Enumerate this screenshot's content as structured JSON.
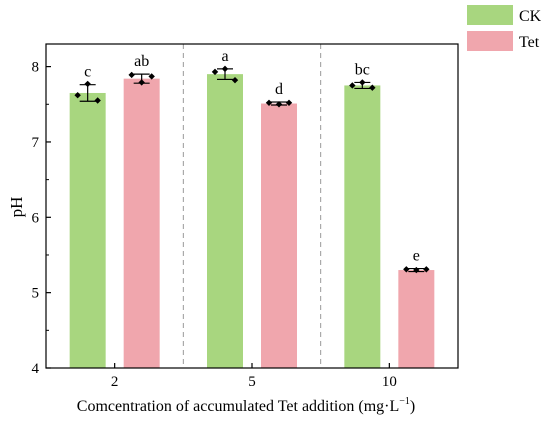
{
  "chart_data": {
    "type": "bar",
    "xlabel": "Comcentration of accumulated Tet addition (mg·L",
    "xlabel_superscript": "−1",
    "xlabel_close": ")",
    "ylabel": "pH",
    "categories": [
      "2",
      "5",
      "10"
    ],
    "ylim": [
      4,
      8.3
    ],
    "yticks": [
      4,
      5,
      6,
      7,
      8
    ],
    "grid": false,
    "group_separators": "dashed vertical lines between groups",
    "legend_position": "top-right, outside plot",
    "series": [
      {
        "name": "CK",
        "color": "#a8d67f",
        "values": [
          7.65,
          7.9,
          7.75
        ],
        "errors": [
          0.11,
          0.07,
          0.04
        ],
        "letters": [
          "c",
          "a",
          "bc"
        ],
        "replicates": [
          [
            7.62,
            7.77,
            7.55
          ],
          [
            7.93,
            7.97,
            7.82
          ],
          [
            7.75,
            7.79,
            7.72
          ]
        ]
      },
      {
        "name": "Tet",
        "color": "#f0a6ad",
        "values": [
          7.84,
          7.51,
          5.3
        ],
        "errors": [
          0.06,
          0.02,
          0.02
        ],
        "letters": [
          "ab",
          "d",
          "e"
        ],
        "replicates": [
          [
            7.89,
            7.79,
            7.87
          ],
          [
            7.52,
            7.5,
            7.52
          ],
          [
            5.31,
            5.3,
            5.31
          ]
        ]
      }
    ]
  }
}
